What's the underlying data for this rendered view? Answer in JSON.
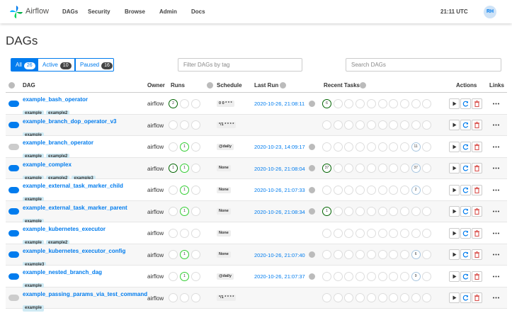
{
  "nav": {
    "brand": "Airflow",
    "menu": [
      "DAGs",
      "Security",
      "Browse",
      "Admin",
      "Docs"
    ],
    "time": "21:11 UTC",
    "user": "RH"
  },
  "title": "DAGs",
  "filters": [
    {
      "label": "All",
      "count": 26
    },
    {
      "label": "Active",
      "count": 10
    },
    {
      "label": "Paused",
      "count": 16
    }
  ],
  "tag_filter_placeholder": "Filter DAGs by tag",
  "search_placeholder": "Search DAGs",
  "table": {
    "headers": [
      "DAG",
      "Owner",
      "Runs",
      "Schedule",
      "Last Run",
      "Recent Tasks",
      "Actions",
      "Links"
    ],
    "rows": [
      {
        "name": "example_bash_operator",
        "tags": [
          "example",
          "example2"
        ],
        "paused": false,
        "owner": "airflow",
        "runs": [
          2,
          null,
          null
        ],
        "schedule": "0 0 * * *",
        "last_run": "2020-10-26, 21:08:11",
        "recent_tasks": [
          6,
          null,
          null,
          null,
          null,
          null,
          null,
          null,
          null,
          null
        ]
      },
      {
        "name": "example_branch_dop_operator_v3",
        "tags": [
          "example"
        ],
        "paused": false,
        "owner": "airflow",
        "runs": [
          null,
          null,
          null
        ],
        "schedule": "*/1 * * * *",
        "last_run": null,
        "recent_tasks": [
          null,
          null,
          null,
          null,
          null,
          null,
          null,
          null,
          null,
          null
        ]
      },
      {
        "name": "example_branch_operator",
        "tags": [
          "example",
          "example2"
        ],
        "paused": true,
        "owner": "airflow",
        "runs": [
          null,
          1,
          null
        ],
        "schedule": "@daily",
        "last_run": "2020-10-23, 14:09:17",
        "recent_tasks": [
          null,
          null,
          null,
          null,
          null,
          null,
          null,
          null,
          11,
          null
        ]
      },
      {
        "name": "example_complex",
        "tags": [
          "example",
          "example2",
          "example3"
        ],
        "paused": false,
        "owner": "airflow",
        "runs": [
          1,
          1,
          null
        ],
        "schedule": "None",
        "last_run": "2020-10-26, 21:08:04",
        "recent_tasks": [
          37,
          null,
          null,
          null,
          null,
          null,
          null,
          null,
          37,
          null
        ]
      },
      {
        "name": "example_external_task_marker_child",
        "tags": [
          "example"
        ],
        "paused": false,
        "owner": "airflow",
        "runs": [
          null,
          1,
          null
        ],
        "schedule": "None",
        "last_run": "2020-10-26, 21:07:33",
        "recent_tasks": [
          null,
          null,
          null,
          null,
          null,
          null,
          null,
          null,
          2,
          null
        ]
      },
      {
        "name": "example_external_task_marker_parent",
        "tags": [
          "example"
        ],
        "paused": false,
        "owner": "airflow",
        "runs": [
          null,
          1,
          null
        ],
        "schedule": "None",
        "last_run": "2020-10-26, 21:08:34",
        "recent_tasks": [
          1,
          null,
          null,
          null,
          null,
          null,
          null,
          null,
          null,
          null
        ]
      },
      {
        "name": "example_kubernetes_executor",
        "tags": [
          "example",
          "example2"
        ],
        "paused": false,
        "owner": "airflow",
        "runs": [
          null,
          null,
          null
        ],
        "schedule": "None",
        "last_run": null,
        "recent_tasks": [
          null,
          null,
          null,
          null,
          null,
          null,
          null,
          null,
          null,
          null
        ]
      },
      {
        "name": "example_kubernetes_executor_config",
        "tags": [
          "example3"
        ],
        "paused": false,
        "owner": "airflow",
        "runs": [
          null,
          1,
          null
        ],
        "schedule": "None",
        "last_run": "2020-10-26, 21:07:40",
        "recent_tasks": [
          null,
          null,
          null,
          null,
          null,
          null,
          null,
          null,
          6,
          null
        ]
      },
      {
        "name": "example_nested_branch_dag",
        "tags": [
          "example"
        ],
        "paused": false,
        "owner": "airflow",
        "runs": [
          null,
          1,
          null
        ],
        "schedule": "@daily",
        "last_run": "2020-10-26, 21:07:37",
        "recent_tasks": [
          null,
          null,
          null,
          null,
          null,
          null,
          null,
          null,
          9,
          null
        ]
      },
      {
        "name": "example_passing_params_via_test_command",
        "tags": [
          "example"
        ],
        "paused": true,
        "owner": "airflow",
        "runs": [
          null,
          null,
          null
        ],
        "schedule": "*/1 * * * *",
        "last_run": null,
        "recent_tasks": [
          null,
          null,
          null,
          null,
          null,
          null,
          null,
          null,
          null,
          null
        ]
      }
    ]
  }
}
